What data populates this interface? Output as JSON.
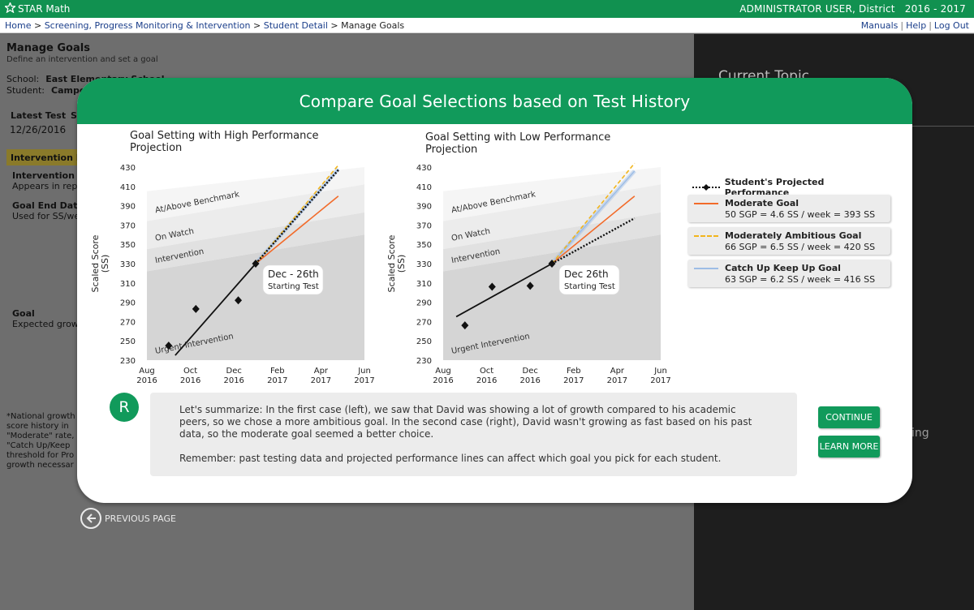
{
  "app": {
    "title": "STAR Math",
    "user": "ADMINISTRATOR USER, District   2016 - 2017"
  },
  "breadcrumb": [
    "Home",
    "Screening, Progress Monitoring & Intervention",
    "Student Detail",
    "Manage Goals"
  ],
  "breadcrumb_sep": " > ",
  "top_links": [
    "Manuals",
    "Help",
    "Log Out"
  ],
  "background_page": {
    "title": "Manage Goals",
    "subtitle": "Define an intervention and set a goal",
    "school_label": "School:",
    "school_value": "East Elementary School",
    "student_label": "Student:",
    "student_value": "Campo",
    "latest_test_label": "Latest Test",
    "latest_test_col2": "S",
    "latest_test_date": "12/26/2016",
    "intervention_header": "Intervention D",
    "intervention_label": "Intervention N",
    "intervention_desc": "Appears in repo",
    "goal_end_label": "Goal End Date",
    "goal_end_desc": "Used for SS/we",
    "goal_label": "Goal",
    "goal_desc": "Expected growt",
    "footnotes": [
      "*National growth",
      "score history in",
      "\"Moderate\" rate,",
      "\"Catch Up/Keep",
      "threshold for Pro",
      "growth necessar"
    ],
    "right_panel_topic": "Current Topic",
    "right_panel_partial": "ing",
    "prev_page": "PREVIOUS PAGE"
  },
  "modal": {
    "title": "Compare Goal Selections based on Test History",
    "avatar_letter": "R",
    "summary": [
      "Let's summarize: In the first case (left), we saw that David was showing a lot of growth compared to his academic peers, so we chose a more ambitious goal. In the second case (right), David wasn't growing as fast based on his past data, so the moderate goal seemed a better choice.",
      "Remember: past testing data and projected performance lines can affect which goal you pick for each student."
    ],
    "continue_label": "CONTINUE",
    "learn_more_label": "LEARN MORE"
  },
  "legend": {
    "projected": "Student's Projected Performance",
    "items": [
      {
        "name": "Moderate Goal",
        "desc": "50 SGP = 4.6 SS / week = 393 SS",
        "color": "#f26b2a",
        "dash": false
      },
      {
        "name": "Moderately Ambitious Goal",
        "desc": "66 SGP = 6.5 SS / week = 420 SS",
        "color": "#f2b51c",
        "dash": true
      },
      {
        "name": "Catch Up Keep Up Goal",
        "desc": "63 SGP = 6.2 SS / week = 416 SS",
        "color": "#9dbde6",
        "dash": false
      }
    ]
  },
  "chart_data": [
    {
      "type": "line",
      "title": "Goal Setting with High Performance Projection",
      "ylabel": "Scaled Score (SS)",
      "ylim": [
        230,
        430
      ],
      "yticks": [
        230,
        250,
        270,
        290,
        310,
        330,
        350,
        370,
        390,
        410,
        430
      ],
      "xticks": [
        {
          "month": "Aug",
          "year": "2016",
          "t": 0
        },
        {
          "month": "Oct",
          "year": "2016",
          "t": 2
        },
        {
          "month": "Dec",
          "year": "2016",
          "t": 4
        },
        {
          "month": "Feb",
          "year": "2017",
          "t": 6
        },
        {
          "month": "Apr",
          "year": "2017",
          "t": 8
        },
        {
          "month": "Jun",
          "year": "2017",
          "t": 10
        }
      ],
      "xlim": [
        0,
        10
      ],
      "bands": [
        {
          "label": "At/Above Benchmark",
          "lower_start": 374,
          "lower_end": 412,
          "color": "#f5f5f5"
        },
        {
          "label": "On Watch",
          "lower_start": 345,
          "lower_end": 383,
          "color": "#ececec"
        },
        {
          "label": "Intervention",
          "lower_start": 322,
          "lower_end": 360,
          "color": "#e1e1e1"
        },
        {
          "label": "Urgent Intervention",
          "lower_start": 230,
          "lower_end": 230,
          "color": "#d5d5d5"
        }
      ],
      "band_top": [
        405,
        432
      ],
      "test_scores": [
        {
          "t": 1.0,
          "y": 245
        },
        {
          "t": 2.25,
          "y": 283
        },
        {
          "t": 4.2,
          "y": 292
        }
      ],
      "trend": {
        "start": {
          "t": 1.3,
          "y": 235
        },
        "start_test": {
          "t": 5.0,
          "y": 330
        }
      },
      "annotation": {
        "title": "Dec - 26th",
        "sub": "Starting Test"
      },
      "projection_end": {
        "t": 8.8,
        "y": 427
      },
      "goals": [
        {
          "name": "Moderate Goal",
          "end": {
            "t": 8.8,
            "y": 400
          }
        },
        {
          "name": "Moderately Ambitious Goal",
          "end": {
            "t": 8.8,
            "y": 432
          }
        },
        {
          "name": "Catch Up Keep Up Goal",
          "end": {
            "t": 8.8,
            "y": 428
          }
        }
      ]
    },
    {
      "type": "line",
      "title": "Goal Setting with Low Performance Projection",
      "ylabel": "Scaled Score (SS)",
      "ylim": [
        230,
        430
      ],
      "yticks": [
        230,
        250,
        270,
        290,
        310,
        330,
        350,
        370,
        390,
        410,
        430
      ],
      "xticks": [
        {
          "month": "Aug",
          "year": "2016",
          "t": 0
        },
        {
          "month": "Oct",
          "year": "2016",
          "t": 2
        },
        {
          "month": "Dec",
          "year": "2016",
          "t": 4
        },
        {
          "month": "Feb",
          "year": "2017",
          "t": 6
        },
        {
          "month": "Apr",
          "year": "2017",
          "t": 8
        },
        {
          "month": "Jun",
          "year": "2017",
          "t": 10
        }
      ],
      "xlim": [
        0,
        10
      ],
      "bands": [
        {
          "label": "At/Above Benchmark",
          "lower_start": 374,
          "lower_end": 412,
          "color": "#f5f5f5"
        },
        {
          "label": "On Watch",
          "lower_start": 345,
          "lower_end": 383,
          "color": "#ececec"
        },
        {
          "label": "Intervention",
          "lower_start": 322,
          "lower_end": 360,
          "color": "#e1e1e1"
        },
        {
          "label": "Urgent Intervention",
          "lower_start": 230,
          "lower_end": 230,
          "color": "#d5d5d5"
        }
      ],
      "band_top": [
        405,
        432
      ],
      "test_scores": [
        {
          "t": 1.0,
          "y": 266
        },
        {
          "t": 2.25,
          "y": 306
        },
        {
          "t": 4.0,
          "y": 307
        }
      ],
      "trend": {
        "start": {
          "t": 0.6,
          "y": 275
        },
        "start_test": {
          "t": 5.0,
          "y": 330
        }
      },
      "annotation": {
        "title": "Dec 26th",
        "sub": "Starting Test"
      },
      "projection_end": {
        "t": 8.8,
        "y": 377
      },
      "goals": [
        {
          "name": "Moderate Goal",
          "end": {
            "t": 8.8,
            "y": 400
          }
        },
        {
          "name": "Moderately Ambitious Goal",
          "end": {
            "t": 8.8,
            "y": 434
          }
        },
        {
          "name": "Catch Up Keep Up Goal",
          "end": {
            "t": 8.8,
            "y": 426
          }
        }
      ]
    }
  ]
}
